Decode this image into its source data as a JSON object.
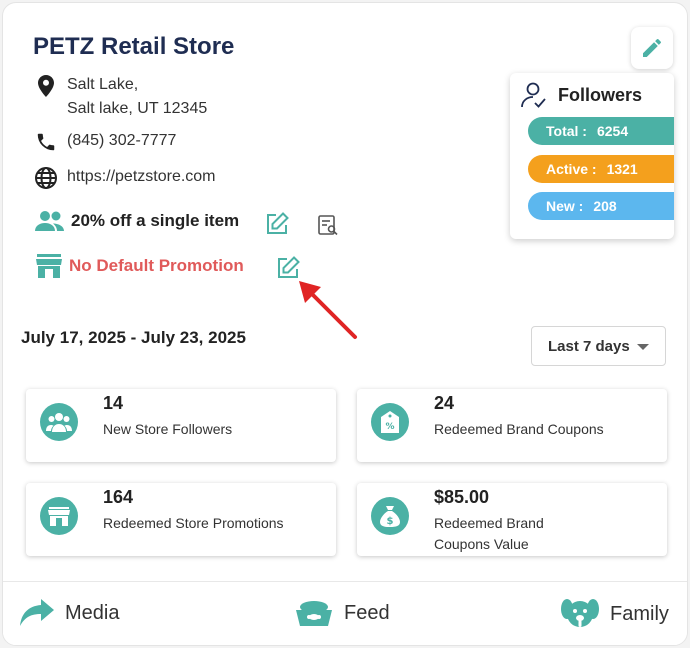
{
  "store": {
    "name": "PETZ Retail Store",
    "address_line1": "Salt Lake,",
    "address_line2": "Salt lake, UT 12345",
    "phone": "(845) 302-7777",
    "website": "https://petzstore.com"
  },
  "promotions": {
    "brand_promo": "20% off a single item",
    "store_promo": "No Default Promotion"
  },
  "followers": {
    "title": "Followers",
    "total_label": "Total :",
    "total_value": "6254",
    "active_label": "Active :",
    "active_value": "1321",
    "new_label": "New :",
    "new_value": "208"
  },
  "date_range": "July 17, 2025 - July 23, 2025",
  "period_select": {
    "selected": "Last 7 days"
  },
  "stats": [
    {
      "value": "14",
      "label": "New Store Followers",
      "icon": "people-icon"
    },
    {
      "value": "24",
      "label": "Redeemed Brand Coupons",
      "icon": "coupon-tag-icon"
    },
    {
      "value": "164",
      "label": "Redeemed Store Promotions",
      "icon": "storefront-icon"
    },
    {
      "value": "$85.00",
      "label_line1": "Redeemed Brand",
      "label_line2": "Coupons Value",
      "icon": "money-bag-icon"
    }
  ],
  "bottom_nav": [
    {
      "label": "Media",
      "icon": "share-arrow-icon"
    },
    {
      "label": "Feed",
      "icon": "pet-bowl-icon"
    },
    {
      "label": "Family",
      "icon": "dog-face-icon"
    }
  ],
  "colors": {
    "accent_teal": "#4bb1a5",
    "active_orange": "#f4a01d",
    "new_blue": "#5cb7ee",
    "promo_red": "#e05a5a",
    "annotation_arrow": "#e02424"
  }
}
